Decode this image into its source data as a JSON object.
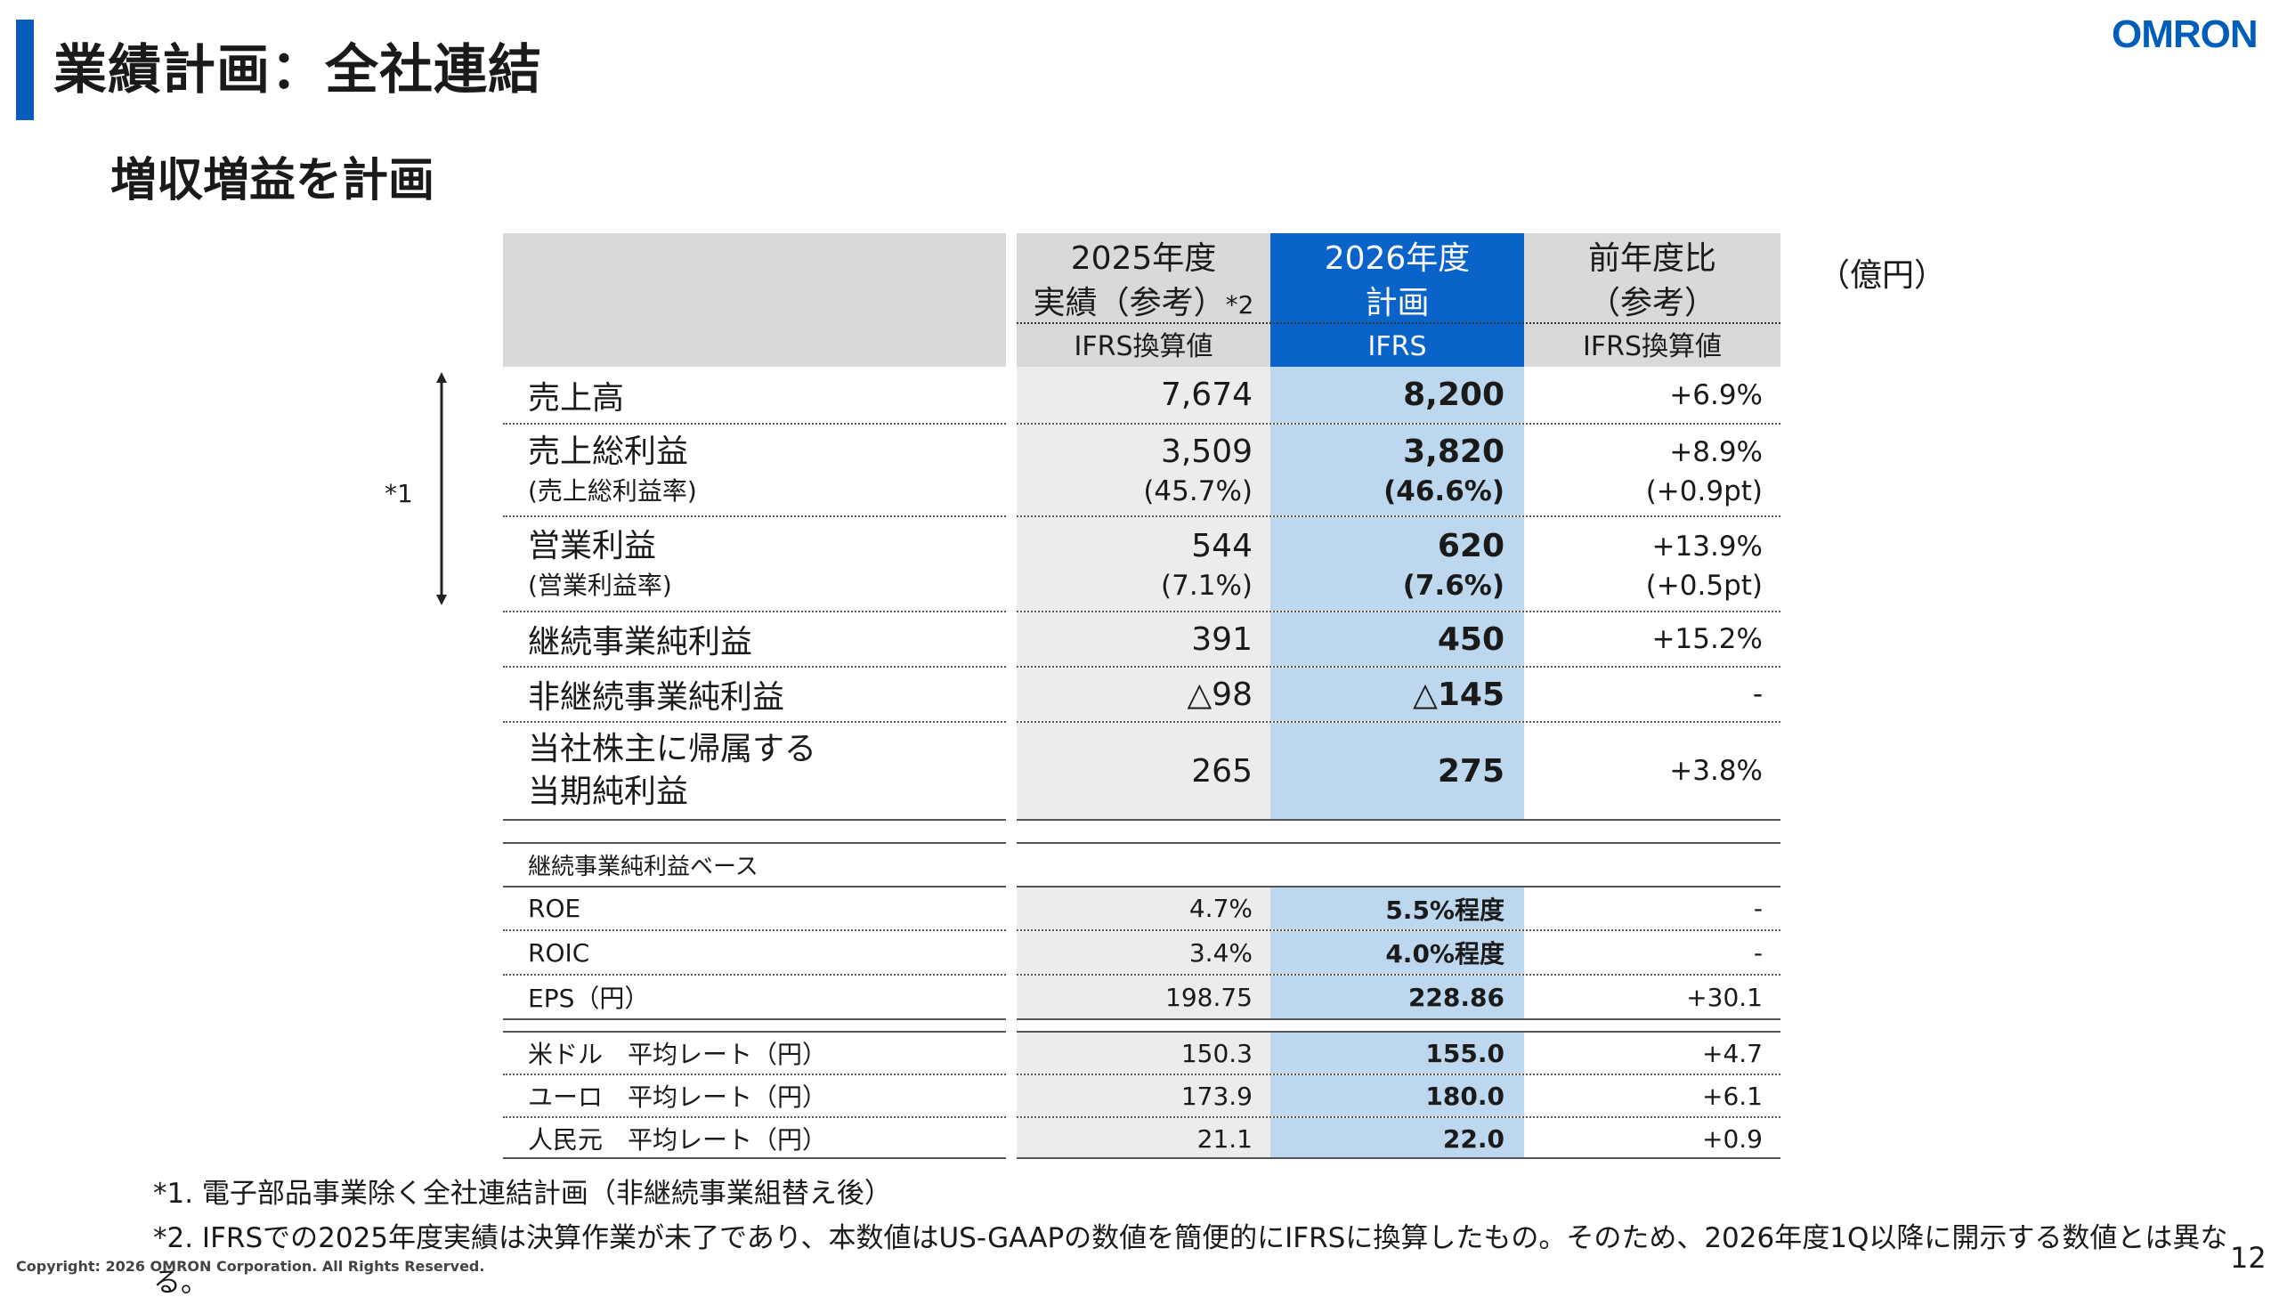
{
  "title": "業績計画：全社連結",
  "subtitle": "増収増益を計画",
  "logo": "OMRON",
  "unit": "（億円）",
  "bracket_note": "*1",
  "header": {
    "col2025_line1": "2025年度",
    "col2025_line2": "実績（参考）",
    "col2025_mark": "*2",
    "col2025_sub": "IFRS換算値",
    "col2026_line1": "2026年度",
    "col2026_line2": "計画",
    "col2026_sub": "IFRS",
    "coldiff_line1": "前年度比",
    "coldiff_line2": "（参考）",
    "coldiff_sub": "IFRS換算値"
  },
  "rows": [
    {
      "label": "売上高",
      "v2025": "7,674",
      "v2026": "8,200",
      "diff": "+6.9%"
    },
    {
      "label": "売上総利益",
      "sublabel": "(売上総利益率)",
      "v2025": "3,509",
      "v2025b": "(45.7%)",
      "v2026": "3,820",
      "v2026b": "(46.6%)",
      "diff": "+8.9%",
      "diffb": "(+0.9pt)"
    },
    {
      "label": "営業利益",
      "sublabel": "(営業利益率)",
      "v2025": "544",
      "v2025b": "(7.1%)",
      "v2026": "620",
      "v2026b": "(7.6%)",
      "diff": "+13.9%",
      "diffb": "(+0.5pt)"
    },
    {
      "label": "継続事業純利益",
      "v2025": "391",
      "v2026": "450",
      "diff": "+15.2%"
    },
    {
      "label": "非継続事業純利益",
      "v2025": "△98",
      "v2026": "△145",
      "diff": "-"
    },
    {
      "label": "当社株主に帰属する",
      "label2": "当期純利益",
      "v2025": "265",
      "v2026": "275",
      "diff": "+3.8%"
    }
  ],
  "section_label": "継続事業純利益ベース",
  "ratios": [
    {
      "label": "ROE",
      "v2025": "4.7%",
      "v2026": "5.5%程度",
      "diff": "-"
    },
    {
      "label": "ROIC",
      "v2025": "3.4%",
      "v2026": "4.0%程度",
      "diff": "-"
    },
    {
      "label": "EPS（円）",
      "v2025": "198.75",
      "v2026": "228.86",
      "diff": "+30.1"
    }
  ],
  "fx": [
    {
      "label": "米ドル　平均レート（円）",
      "v2025": "150.3",
      "v2026": "155.0",
      "diff": "+4.7"
    },
    {
      "label": "ユーロ　平均レート（円）",
      "v2025": "173.9",
      "v2026": "180.0",
      "diff": "+6.1"
    },
    {
      "label": "人民元　平均レート（円）",
      "v2025": "21.1",
      "v2026": "22.0",
      "diff": "+0.9"
    }
  ],
  "notes": [
    "*1. 電子部品事業除く全社連結計画（非継続事業組替え後）",
    "*2. IFRSでの2025年度実績は決算作業が未了であり、本数値はUS-GAAPの数値を簡便的にIFRSに換算したもの。そのため、2026年度1Q以降に開示する数値とは異なる。"
  ],
  "copyright": "Copyright: 2026 OMRON Corporation. All Rights Reserved.",
  "page_number": "12",
  "colors": {
    "accent": "#0a5cba",
    "header_blue": "#0a63c8",
    "plan_column": "#bdd7ee",
    "actual_column": "#ececec",
    "header_gray": "#d9d9d9"
  }
}
